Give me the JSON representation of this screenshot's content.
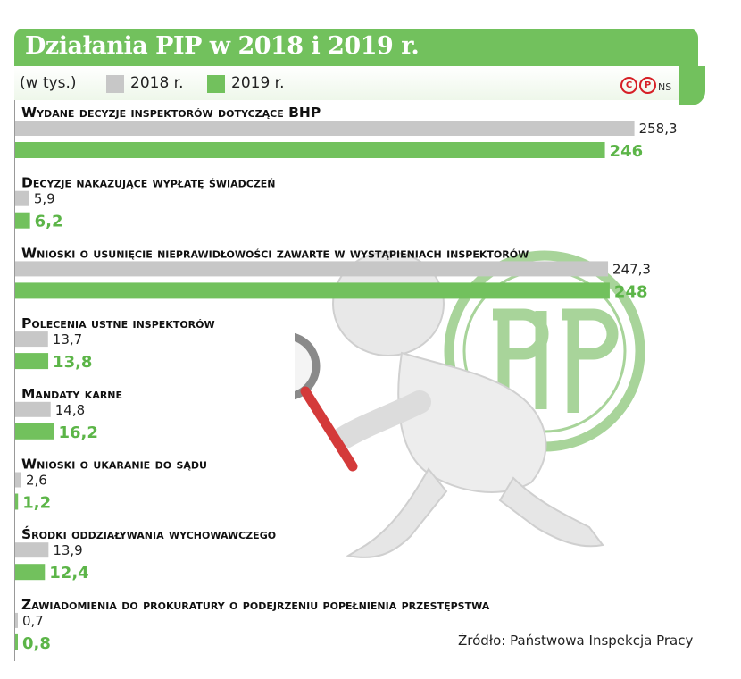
{
  "header": {
    "title": "Działania PIP w 2018 i 2019 r."
  },
  "legend": {
    "unit": "(w tys.)",
    "label_2018": "2018 r.",
    "label_2019": "2019 r.",
    "ns": "NS"
  },
  "colors": {
    "green": "#72c15d",
    "green_dark": "#5cb548",
    "gray": "#c7c7c7"
  },
  "source": "Źródło: Państwowa Inspekcja Pracy",
  "chart_data": {
    "type": "bar",
    "orientation": "horizontal",
    "value_unit": "tys.",
    "xlim": [
      0,
      270
    ],
    "series": [
      {
        "name": "2018 r."
      },
      {
        "name": "2019 r."
      }
    ],
    "categories": [
      "Wydane decyzje inspektorów dotyczące BHP",
      "Decyzje nakazujące wypłatę świadczeń",
      "Wnioski o usunięcie nieprawidłowości zawarte w wystąpieniach inspektorów",
      "Polecenia ustne inspektorów",
      "Mandaty karne",
      "Wnioski o ukaranie do sądu",
      "Środki oddziaływania wychowawczego",
      "Zawiadomienia do prokuratury o podejrzeniu popełnienia przestępstwa"
    ],
    "values_2018": [
      258.3,
      5.9,
      247.3,
      13.7,
      14.8,
      2.6,
      13.9,
      0.7
    ],
    "values_2019": [
      246,
      6.2,
      248,
      13.8,
      16.2,
      1.2,
      12.4,
      0.8
    ],
    "labels_2018": [
      "258,3",
      "5,9",
      "247,3",
      "13,7",
      "14,8",
      "2,6",
      "13,9",
      "0,7"
    ],
    "labels_2019": [
      "246",
      "6,2",
      "248",
      "13,8",
      "16,2",
      "1,2",
      "12,4",
      "0,8"
    ]
  }
}
